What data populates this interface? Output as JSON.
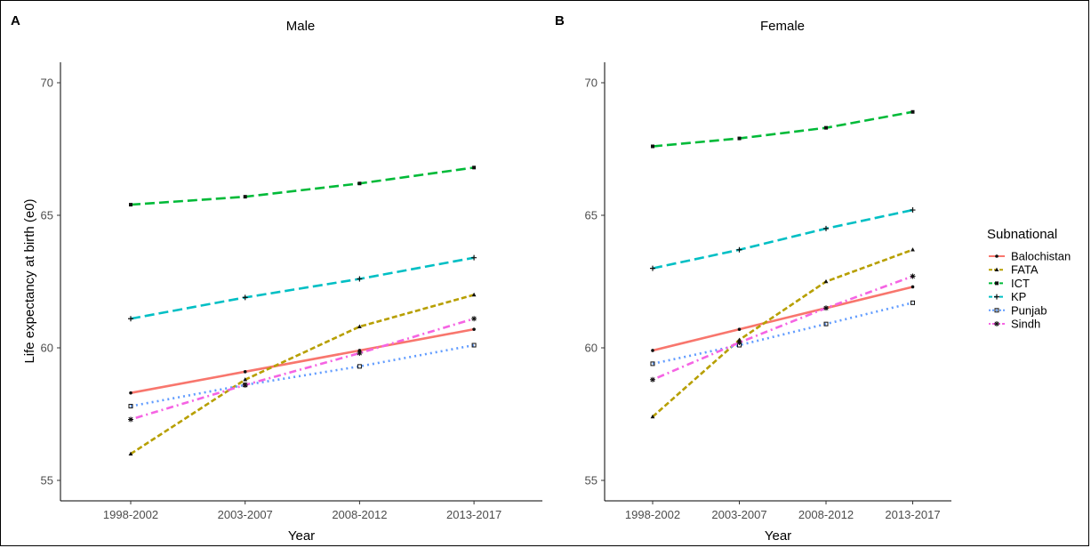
{
  "chart_data": [
    {
      "type": "line",
      "tag": "A",
      "title": "Male",
      "xlabel": "Year",
      "ylabel": "Life expectancy at birth (e0)",
      "categories": [
        "1998-2002",
        "2003-2007",
        "2008-2012",
        "2013-2017"
      ],
      "ylim": [
        54.5,
        70.8
      ],
      "yticks": [
        55,
        60,
        65,
        70
      ],
      "grid": false,
      "series": [
        {
          "name": "Balochistan",
          "values": [
            58.3,
            59.1,
            59.9,
            60.7
          ]
        },
        {
          "name": "FATA",
          "values": [
            56.0,
            58.8,
            60.8,
            62.0
          ]
        },
        {
          "name": "ICT",
          "values": [
            65.4,
            65.7,
            66.2,
            66.8
          ]
        },
        {
          "name": "KP",
          "values": [
            61.1,
            61.9,
            62.6,
            63.4
          ]
        },
        {
          "name": "Punjab",
          "values": [
            57.8,
            58.6,
            59.3,
            60.1
          ]
        },
        {
          "name": "Sindh",
          "values": [
            57.3,
            58.6,
            59.8,
            61.1
          ]
        }
      ]
    },
    {
      "type": "line",
      "tag": "B",
      "title": "Female",
      "xlabel": "Year",
      "ylabel": "",
      "categories": [
        "1998-2002",
        "2003-2007",
        "2008-2012",
        "2013-2017"
      ],
      "ylim": [
        54.5,
        70.8
      ],
      "yticks": [
        55,
        60,
        65,
        70
      ],
      "grid": false,
      "series": [
        {
          "name": "Balochistan",
          "values": [
            59.9,
            60.7,
            61.5,
            62.3
          ]
        },
        {
          "name": "FATA",
          "values": [
            57.4,
            60.3,
            62.5,
            63.7
          ]
        },
        {
          "name": "ICT",
          "values": [
            67.6,
            67.9,
            68.3,
            68.9
          ]
        },
        {
          "name": "KP",
          "values": [
            63.0,
            63.7,
            64.5,
            65.2
          ]
        },
        {
          "name": "Punjab",
          "values": [
            59.4,
            60.1,
            60.9,
            61.7
          ]
        },
        {
          "name": "Sindh",
          "values": [
            58.8,
            60.2,
            61.5,
            62.7
          ]
        }
      ]
    }
  ],
  "legend": {
    "title": "Subnational",
    "placement": "right",
    "items": [
      {
        "name": "Balochistan",
        "color": "#F8766D",
        "dash": "solid",
        "marker": "dot"
      },
      {
        "name": "FATA",
        "color": "#B79F00",
        "dash": "dashed",
        "marker": "triangle"
      },
      {
        "name": "ICT",
        "color": "#00BA38",
        "dash": "longdash",
        "marker": "square"
      },
      {
        "name": "KP",
        "color": "#00BFC4",
        "dash": "longdash",
        "marker": "plus"
      },
      {
        "name": "Punjab",
        "color": "#619CFF",
        "dash": "dotted",
        "marker": "square-open"
      },
      {
        "name": "Sindh",
        "color": "#F564E3",
        "dash": "dotdash",
        "marker": "asterisk"
      }
    ]
  }
}
